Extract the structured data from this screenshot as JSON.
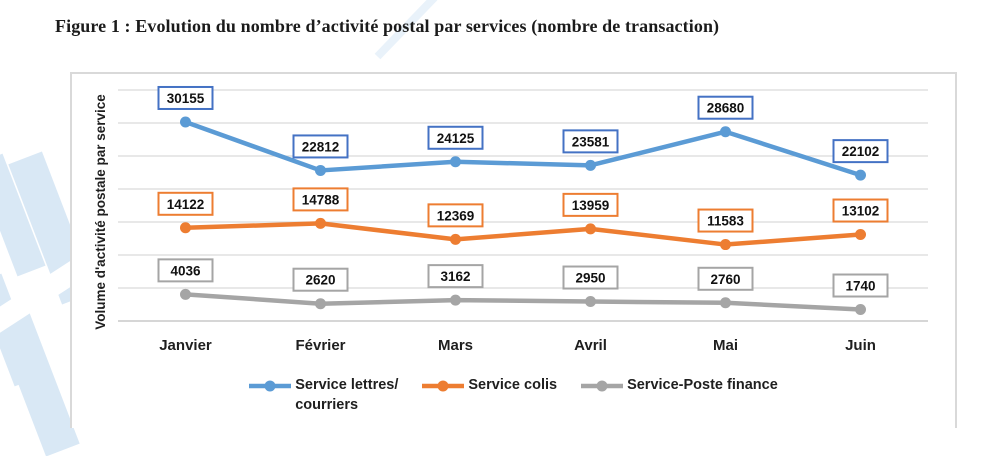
{
  "title": "Figure 1 : Evolution du nombre d’activité postal par services (nombre de transaction)",
  "chart_data": {
    "type": "line",
    "categories": [
      "Janvier",
      "Février",
      "Mars",
      "Avril",
      "Mai",
      "Juin"
    ],
    "series": [
      {
        "name": "Service lettres/courriers",
        "legend_label": "Service lettres/\ncourriers",
        "color": "#5B9BD5",
        "label_border": "#4472C4",
        "values": [
          30155,
          22812,
          24125,
          23581,
          28680,
          22102
        ]
      },
      {
        "name": "Service colis",
        "legend_label": "Service colis",
        "color": "#ED7D31",
        "label_border": "#ED7D31",
        "values": [
          14122,
          14788,
          12369,
          13959,
          11583,
          13102
        ]
      },
      {
        "name": "Service-Poste finance",
        "legend_label": "Service-Poste finance",
        "color": "#A5A5A5",
        "label_border": "#A5A5A5",
        "values": [
          4036,
          2620,
          3162,
          2950,
          2760,
          1740
        ]
      }
    ],
    "title": "",
    "xlabel": "",
    "ylabel": "Volume d'activité postale par service",
    "ylim": [
      0,
      35000
    ],
    "gridline_step": 5000,
    "grid": true,
    "y_tick_labels_visible": false,
    "data_labels": true,
    "data_label_style": "boxed, white fill, border in series color",
    "legend_position": "bottom"
  },
  "colors": {
    "gridline": "#d9d9d9",
    "axis_line": "#bdbdbd",
    "chart_border": "#d9d9d9",
    "text": "#1f1f1f",
    "background_decoration": "#d9e8f5"
  }
}
